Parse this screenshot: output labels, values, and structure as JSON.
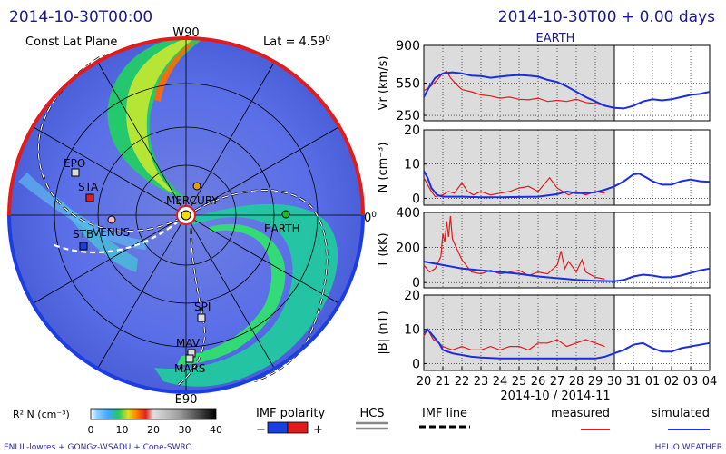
{
  "header": {
    "left_title": "2014-10-30T00:00",
    "right_title": "2014-10-30T00 + 0.00 days",
    "subtitle": "EARTH"
  },
  "polar": {
    "plane_label": "Const Lat Plane",
    "lat_label": "Lat = 4.59",
    "lat_sup": "0",
    "top_label": "W90",
    "bottom_label": "E90",
    "right_label": "0",
    "right_sup": "0",
    "objects": [
      {
        "name": "EPO",
        "color": "#dddddd"
      },
      {
        "name": "STA",
        "color": "#e31b1b"
      },
      {
        "name": "VENUS",
        "color": "#f4b6b6"
      },
      {
        "name": "STB",
        "color": "#1b3de3"
      },
      {
        "name": "MERCURY",
        "color": "#f09a00"
      },
      {
        "name": "EARTH",
        "color": "#22b822"
      },
      {
        "name": "SPI",
        "color": "#dddddd"
      },
      {
        "name": "MAV",
        "color": "#dddddd"
      },
      {
        "name": "MARS",
        "color": "#dddddd"
      }
    ]
  },
  "colorbar": {
    "label": "R² N (cm⁻³)",
    "ticks": [
      "0",
      "10",
      "20",
      "30",
      "40"
    ]
  },
  "legend": {
    "imf_polarity": "IMF polarity",
    "minus": "−",
    "plus": "+",
    "hcs": "HCS",
    "imf_line": "IMF line",
    "measured": "measured",
    "simulated": "simulated",
    "measured_color": "#e31b1b",
    "simulated_color": "#1b2de3"
  },
  "footer": {
    "left": "ENLIL-lowres + GONGz-WSADU + Cone-SWRC",
    "right": "HELIO WEATHER"
  },
  "chart_data": {
    "type": "line",
    "x_ticks": [
      "20",
      "21",
      "22",
      "23",
      "24",
      "25",
      "26",
      "27",
      "28",
      "29",
      "30",
      "31",
      "01",
      "02",
      "03",
      "04"
    ],
    "xlabel": "2014-10 / 2014-11",
    "panels": [
      {
        "ylabel": "Vr (km/s)",
        "yticks": [
          250,
          550,
          900
        ],
        "ytick_labels": [
          "250",
          "550",
          "900"
        ],
        "ylim": [
          200,
          900
        ],
        "measured": [
          [
            20.0,
            480
          ],
          [
            20.3,
            510
          ],
          [
            20.6,
            560
          ],
          [
            20.8,
            600
          ],
          [
            21.0,
            640
          ],
          [
            21.2,
            660
          ],
          [
            21.4,
            600
          ],
          [
            21.7,
            540
          ],
          [
            22.0,
            490
          ],
          [
            22.5,
            470
          ],
          [
            23.0,
            440
          ],
          [
            23.5,
            430
          ],
          [
            24.0,
            410
          ],
          [
            24.5,
            420
          ],
          [
            25.0,
            400
          ],
          [
            25.5,
            395
          ],
          [
            26.0,
            410
          ],
          [
            26.5,
            380
          ],
          [
            27.0,
            390
          ],
          [
            27.5,
            380
          ],
          [
            28.0,
            400
          ],
          [
            28.5,
            370
          ],
          [
            29.0,
            360
          ],
          [
            29.5,
            340
          ]
        ],
        "simulated": [
          [
            20.0,
            420
          ],
          [
            20.3,
            520
          ],
          [
            20.6,
            600
          ],
          [
            21.0,
            640
          ],
          [
            21.5,
            650
          ],
          [
            22.0,
            640
          ],
          [
            22.5,
            620
          ],
          [
            23.0,
            615
          ],
          [
            23.5,
            600
          ],
          [
            24.0,
            610
          ],
          [
            24.5,
            620
          ],
          [
            25.0,
            625
          ],
          [
            25.5,
            620
          ],
          [
            26.0,
            610
          ],
          [
            26.5,
            580
          ],
          [
            27.0,
            560
          ],
          [
            27.5,
            520
          ],
          [
            28.0,
            470
          ],
          [
            28.5,
            420
          ],
          [
            29.0,
            380
          ],
          [
            29.5,
            340
          ],
          [
            30.0,
            320
          ],
          [
            30.5,
            315
          ],
          [
            31.0,
            340
          ],
          [
            31.5,
            380
          ],
          [
            32.0,
            400
          ],
          [
            32.5,
            390
          ],
          [
            33.0,
            400
          ],
          [
            33.5,
            420
          ],
          [
            34.0,
            440
          ],
          [
            34.5,
            450
          ],
          [
            35.0,
            470
          ]
        ]
      },
      {
        "ylabel": "N (cm⁻³)",
        "yticks": [
          0,
          10,
          20
        ],
        "ytick_labels": [
          "0",
          "10",
          "20"
        ],
        "ylim": [
          -2,
          20
        ],
        "measured": [
          [
            20.0,
            6
          ],
          [
            20.2,
            4
          ],
          [
            20.4,
            2
          ],
          [
            20.6,
            0.5
          ],
          [
            21.0,
            1
          ],
          [
            21.3,
            2
          ],
          [
            21.6,
            1.5
          ],
          [
            22.0,
            4.5
          ],
          [
            22.3,
            2
          ],
          [
            22.6,
            1
          ],
          [
            23.0,
            2
          ],
          [
            23.5,
            1
          ],
          [
            24.0,
            1.5
          ],
          [
            24.5,
            2
          ],
          [
            25.0,
            3
          ],
          [
            25.5,
            3.5
          ],
          [
            26.0,
            2
          ],
          [
            26.3,
            4
          ],
          [
            26.6,
            6
          ],
          [
            27.0,
            3
          ],
          [
            27.3,
            2
          ],
          [
            27.6,
            1
          ],
          [
            28.0,
            2
          ],
          [
            28.5,
            1
          ],
          [
            29.0,
            2
          ],
          [
            29.5,
            1.5
          ]
        ],
        "simulated": [
          [
            20.0,
            8
          ],
          [
            20.2,
            6
          ],
          [
            20.4,
            3
          ],
          [
            20.7,
            1
          ],
          [
            21.0,
            0.5
          ],
          [
            22.0,
            0.5
          ],
          [
            23.0,
            0.3
          ],
          [
            24.0,
            0.3
          ],
          [
            25.0,
            0.4
          ],
          [
            26.0,
            0.5
          ],
          [
            27.0,
            1.2
          ],
          [
            27.5,
            2
          ],
          [
            28.0,
            1.5
          ],
          [
            28.5,
            1.5
          ],
          [
            29.0,
            1.8
          ],
          [
            29.5,
            2.5
          ],
          [
            30.0,
            3.5
          ],
          [
            30.5,
            5
          ],
          [
            31.0,
            7
          ],
          [
            31.3,
            7.2
          ],
          [
            31.7,
            6
          ],
          [
            32.0,
            5
          ],
          [
            32.5,
            4
          ],
          [
            33.0,
            4
          ],
          [
            33.5,
            5
          ],
          [
            34.0,
            5.5
          ],
          [
            34.5,
            5
          ],
          [
            35.0,
            4.8
          ]
        ]
      },
      {
        "ylabel": "T (kK)",
        "yticks": [
          0,
          200,
          400
        ],
        "ytick_labels": [
          "0",
          "200",
          "400"
        ],
        "ylim": [
          -30,
          400
        ],
        "measured": [
          [
            20.0,
            100
          ],
          [
            20.3,
            60
          ],
          [
            20.6,
            80
          ],
          [
            20.9,
            150
          ],
          [
            21.0,
            280
          ],
          [
            21.1,
            230
          ],
          [
            21.2,
            350
          ],
          [
            21.3,
            260
          ],
          [
            21.4,
            380
          ],
          [
            21.5,
            250
          ],
          [
            21.7,
            200
          ],
          [
            22.0,
            130
          ],
          [
            22.5,
            60
          ],
          [
            23.0,
            50
          ],
          [
            23.5,
            70
          ],
          [
            24.0,
            50
          ],
          [
            24.5,
            60
          ],
          [
            25.0,
            70
          ],
          [
            25.5,
            40
          ],
          [
            26.0,
            60
          ],
          [
            26.5,
            50
          ],
          [
            27.0,
            100
          ],
          [
            27.2,
            180
          ],
          [
            27.4,
            80
          ],
          [
            27.6,
            120
          ],
          [
            28.0,
            60
          ],
          [
            28.3,
            130
          ],
          [
            28.5,
            60
          ],
          [
            29.0,
            30
          ],
          [
            29.5,
            20
          ]
        ],
        "simulated": [
          [
            20.0,
            120
          ],
          [
            20.5,
            110
          ],
          [
            21.0,
            100
          ],
          [
            21.5,
            90
          ],
          [
            22.0,
            80
          ],
          [
            23.0,
            70
          ],
          [
            24.0,
            60
          ],
          [
            25.0,
            50
          ],
          [
            26.0,
            35
          ],
          [
            27.0,
            25
          ],
          [
            27.5,
            20
          ],
          [
            28.0,
            15
          ],
          [
            29.0,
            10
          ],
          [
            30.0,
            8
          ],
          [
            30.5,
            15
          ],
          [
            31.0,
            35
          ],
          [
            31.5,
            45
          ],
          [
            32.0,
            40
          ],
          [
            32.5,
            30
          ],
          [
            33.0,
            30
          ],
          [
            33.5,
            40
          ],
          [
            34.0,
            55
          ],
          [
            34.5,
            70
          ],
          [
            35.0,
            80
          ]
        ]
      },
      {
        "ylabel": "|B| (nT)",
        "yticks": [
          0,
          10,
          20
        ],
        "ytick_labels": [
          "0",
          "10",
          "20"
        ],
        "ylim": [
          -2,
          20
        ],
        "measured": [
          [
            20.0,
            8
          ],
          [
            20.2,
            10
          ],
          [
            20.5,
            7
          ],
          [
            20.8,
            6
          ],
          [
            21.0,
            5
          ],
          [
            21.5,
            4
          ],
          [
            22.0,
            5
          ],
          [
            22.5,
            4
          ],
          [
            23.0,
            4
          ],
          [
            23.5,
            5
          ],
          [
            24.0,
            4
          ],
          [
            24.5,
            5
          ],
          [
            25.0,
            5
          ],
          [
            25.5,
            4
          ],
          [
            26.0,
            6
          ],
          [
            26.5,
            6
          ],
          [
            27.0,
            7
          ],
          [
            27.5,
            5
          ],
          [
            28.0,
            6
          ],
          [
            28.5,
            7
          ],
          [
            29.0,
            6
          ],
          [
            29.5,
            5
          ]
        ],
        "simulated": [
          [
            20.0,
            9
          ],
          [
            20.2,
            10
          ],
          [
            20.5,
            8
          ],
          [
            20.8,
            6
          ],
          [
            21.0,
            4
          ],
          [
            21.5,
            3
          ],
          [
            22.0,
            2.5
          ],
          [
            22.5,
            2
          ],
          [
            23.0,
            1.8
          ],
          [
            24.0,
            1.5
          ],
          [
            25.0,
            1.5
          ],
          [
            26.0,
            1.5
          ],
          [
            27.0,
            1.5
          ],
          [
            28.0,
            1.5
          ],
          [
            29.0,
            1.5
          ],
          [
            29.5,
            2
          ],
          [
            30.0,
            3
          ],
          [
            30.5,
            4
          ],
          [
            31.0,
            5.5
          ],
          [
            31.5,
            6
          ],
          [
            32.0,
            4.5
          ],
          [
            32.5,
            3.5
          ],
          [
            33.0,
            3.5
          ],
          [
            33.5,
            4.5
          ],
          [
            34.0,
            5
          ],
          [
            34.5,
            5.5
          ],
          [
            35.0,
            6
          ]
        ]
      }
    ]
  }
}
